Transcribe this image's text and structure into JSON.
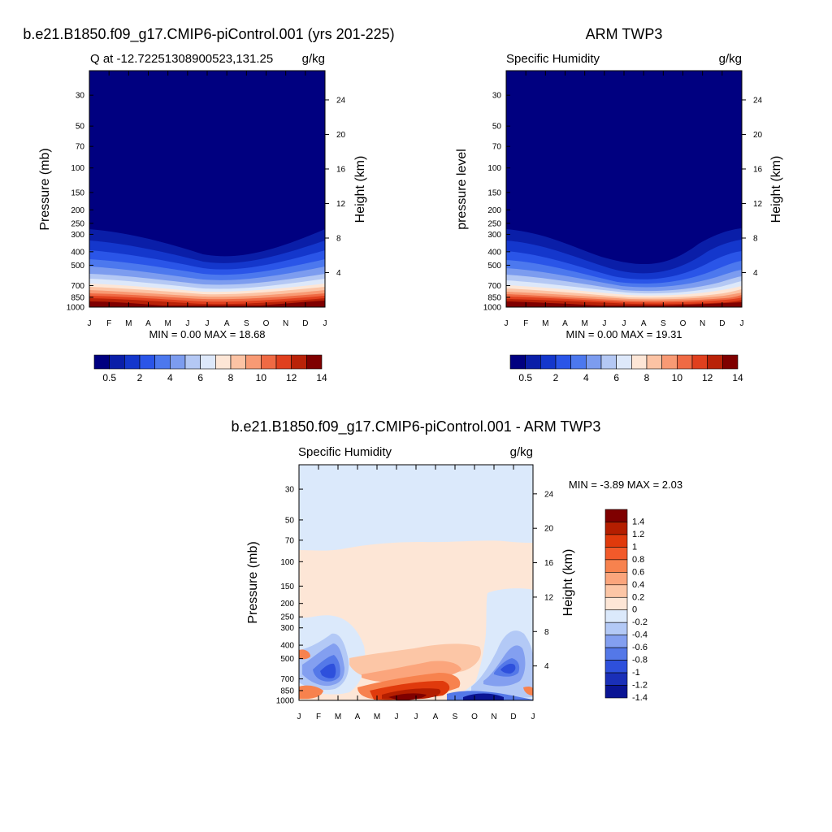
{
  "chart_data": [
    {
      "type": "heatmap",
      "suptitle": "b.e21.B1850.f09_g17.CMIP6-piControl.001 (yrs 201-225)",
      "left_title": "Q at -12.72251308900523,131.25",
      "right_title": "g/kg",
      "ylabel": "Pressure (mb)",
      "ylabel_right": "Height (km)",
      "x": [
        "J",
        "F",
        "M",
        "A",
        "M",
        "J",
        "J",
        "A",
        "S",
        "O",
        "N",
        "D",
        "J"
      ],
      "y_ticks": [
        "30",
        "50",
        "70",
        "100",
        "150",
        "200",
        "250",
        "300",
        "400",
        "500",
        "700",
        "850",
        "1000"
      ],
      "y_right_ticks": [
        "24",
        "20",
        "16",
        "12",
        "8",
        "4"
      ],
      "ylog": true,
      "ylim": [
        1000,
        20
      ],
      "stats": "MIN =   0.00 MAX =  18.68",
      "min": 0.0,
      "max": 18.68,
      "colorbar": [
        "0.5",
        "2",
        "4",
        "6",
        "8",
        "10",
        "12",
        "14"
      ]
    },
    {
      "type": "heatmap",
      "suptitle": "ARM TWP3",
      "left_title": "Specific Humidity",
      "right_title": "g/kg",
      "ylabel": "pressure level",
      "ylabel_right": "Height (km)",
      "x": [
        "J",
        "F",
        "M",
        "A",
        "M",
        "J",
        "J",
        "A",
        "S",
        "O",
        "N",
        "D",
        "J"
      ],
      "y_ticks": [
        "30",
        "50",
        "70",
        "100",
        "150",
        "200",
        "250",
        "300",
        "400",
        "500",
        "700",
        "850",
        "1000"
      ],
      "y_right_ticks": [
        "24",
        "20",
        "16",
        "12",
        "8",
        "4"
      ],
      "ylog": true,
      "ylim": [
        1000,
        20
      ],
      "stats": "MIN =   0.00 MAX =  19.31",
      "min": 0.0,
      "max": 19.31,
      "colorbar": [
        "0.5",
        "2",
        "4",
        "6",
        "8",
        "10",
        "12",
        "14"
      ]
    },
    {
      "type": "heatmap",
      "suptitle": "b.e21.B1850.f09_g17.CMIP6-piControl.001 - ARM TWP3",
      "left_title": "Specific Humidity",
      "right_title": "g/kg",
      "ylabel": "Pressure (mb)",
      "ylabel_right": "Height (km)",
      "x": [
        "J",
        "F",
        "M",
        "A",
        "M",
        "J",
        "J",
        "A",
        "S",
        "O",
        "N",
        "D",
        "J"
      ],
      "y_ticks": [
        "30",
        "50",
        "70",
        "100",
        "150",
        "200",
        "250",
        "300",
        "400",
        "500",
        "700",
        "850",
        "1000"
      ],
      "y_right_ticks": [
        "24",
        "20",
        "16",
        "12",
        "8",
        "4"
      ],
      "ylog": true,
      "ylim": [
        1000,
        20
      ],
      "stats": "MIN =  -3.89 MAX =   2.03",
      "min": -3.89,
      "max": 2.03,
      "colorbar": [
        "1.4",
        "1.2",
        "1",
        "0.8",
        "0.6",
        "0.4",
        "0.2",
        "0",
        "-0.2",
        "-0.4",
        "-0.6",
        "-0.8",
        "-1",
        "-1.2",
        "-1.4"
      ]
    }
  ],
  "palettes": {
    "humidity": [
      "#000080",
      "#0a1ea8",
      "#1437cc",
      "#2a55e8",
      "#4c78ee",
      "#7c9cef",
      "#b4c8f4",
      "#dde8fa",
      "#fde6d6",
      "#fcc3a4",
      "#f89a74",
      "#ef6a44",
      "#e0401e",
      "#b92208",
      "#7f0000"
    ],
    "difference": [
      "#7f0000",
      "#b41e00",
      "#e03a0c",
      "#f25a2a",
      "#f7824e",
      "#fba57c",
      "#fcc6a6",
      "#fde6d6",
      "#dbe9fb",
      "#b3c9f6",
      "#839ff0",
      "#5478e8",
      "#2e50dc",
      "#1a2fb8",
      "#0a1494"
    ]
  }
}
